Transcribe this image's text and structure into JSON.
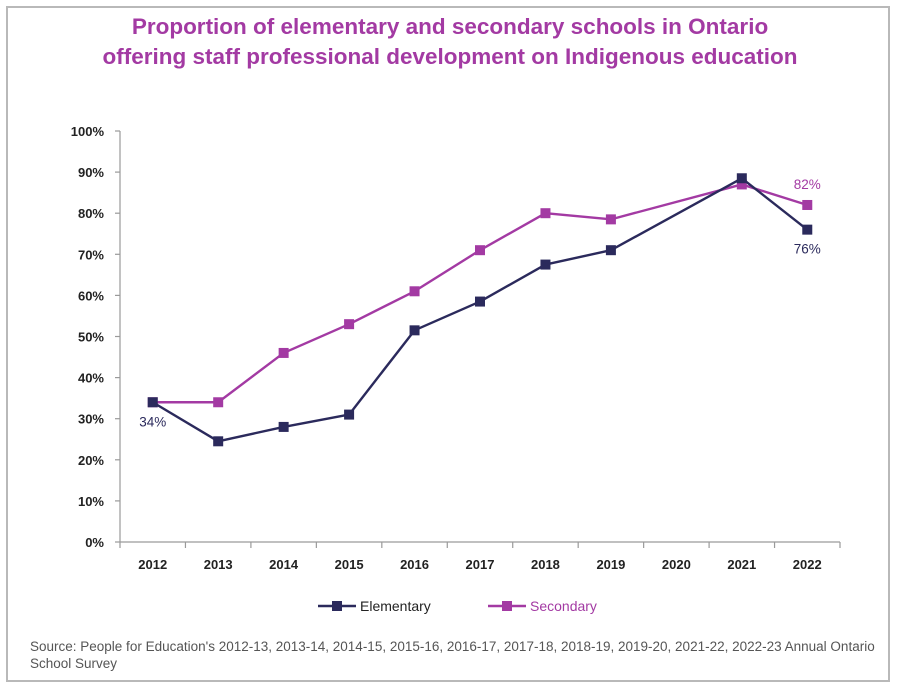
{
  "title_lines": [
    "Proportion of elementary and secondary schools in Ontario",
    "offering staff professional development on Indigenous education"
  ],
  "source": "Source: People for Education's 2012-13, 2013-14, 2014-15, 2015-16, 2016-17, 2017-18, 2018-19, 2019-20, 2021-22, 2022-23 Annual Ontario School Survey",
  "colors": {
    "title": "#a33aa3",
    "elementary": "#2b2a5c",
    "secondary": "#a33aa3",
    "axis": "#9a9a9a",
    "text": "#222222"
  },
  "chart_data": {
    "type": "line",
    "title": "Proportion of elementary and secondary schools in Ontario offering staff professional development on Indigenous education",
    "categories": [
      "2012",
      "2013",
      "2014",
      "2015",
      "2016",
      "2017",
      "2018",
      "2019",
      "2020",
      "2021",
      "2022"
    ],
    "y_ticks": [
      "0%",
      "10%",
      "20%",
      "30%",
      "40%",
      "50%",
      "60%",
      "70%",
      "80%",
      "90%",
      "100%"
    ],
    "ylim": [
      0,
      100
    ],
    "grid": false,
    "legend_position": "bottom",
    "series": [
      {
        "name": "Elementary",
        "color": "#2b2a5c",
        "values": [
          34,
          24.5,
          28,
          31,
          51.5,
          58.5,
          67.5,
          71,
          null,
          88.5,
          76
        ]
      },
      {
        "name": "Secondary",
        "color": "#a33aa3",
        "values": [
          34,
          34,
          46,
          53,
          61,
          71,
          80,
          78.5,
          null,
          87,
          82
        ]
      }
    ],
    "annotations": [
      {
        "series": "Elementary",
        "category": "2012",
        "text": "34%",
        "color": "#2b2a5c",
        "anchor": "below"
      },
      {
        "series": "Elementary",
        "category": "2022",
        "text": "76%",
        "color": "#2b2a5c",
        "anchor": "below"
      },
      {
        "series": "Secondary",
        "category": "2022",
        "text": "82%",
        "color": "#a33aa3",
        "anchor": "above"
      }
    ]
  }
}
